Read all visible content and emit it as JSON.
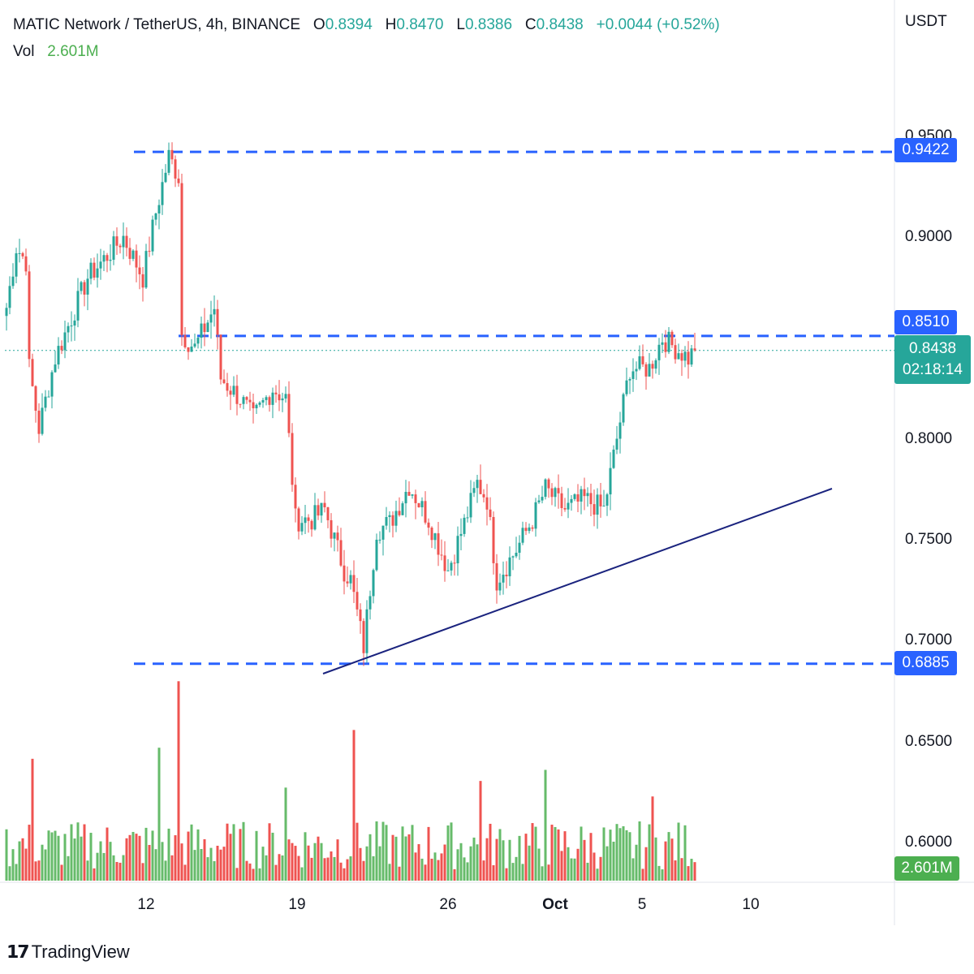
{
  "header": {
    "symbol": "MATIC Network / TetherUS, 4h, BINANCE",
    "open_label": "O",
    "open": "0.8394",
    "high_label": "H",
    "high": "0.8470",
    "low_label": "L",
    "low": "0.8386",
    "close_label": "C",
    "close": "0.8438",
    "change": "+0.0044 (+0.52%)",
    "vol_label": "Vol",
    "vol": "2.601M"
  },
  "axis": {
    "currency": "USDT",
    "price_ticks": [
      "0.9500",
      "0.9000",
      "0.8000",
      "0.7500",
      "0.7000",
      "0.6500",
      "0.6000"
    ],
    "time_ticks": [
      "12",
      "19",
      "26",
      "Oct",
      "5",
      "10"
    ]
  },
  "tags": {
    "resistance_high": "0.9422",
    "resistance_mid": "0.8510",
    "support_low": "0.6885",
    "last_price": "0.8438",
    "countdown": "02:18:14",
    "volume": "2.601M"
  },
  "colors": {
    "up": "#26a69a",
    "down": "#ef5350",
    "vol_up": "#66bb6a",
    "vol_down": "#ef5350",
    "level_line": "#2962ff",
    "trend_line": "#1a237e"
  },
  "branding": {
    "name": "TradingView"
  },
  "chart_data": {
    "type": "candlestick",
    "title": "MATIC Network / TetherUS, 4h, BINANCE",
    "y_range": [
      0.585,
      0.965
    ],
    "horizontal_levels": [
      0.9422,
      0.851,
      0.6885
    ],
    "trendline": {
      "from": [
        0.683
      ],
      "to": [
        0.775
      ],
      "note": "rising support"
    },
    "anchors": [
      {
        "i": 0,
        "p": 0.865
      },
      {
        "i": 3,
        "p": 0.895
      },
      {
        "i": 6,
        "p": 0.888
      },
      {
        "i": 7,
        "p": 0.835
      },
      {
        "i": 10,
        "p": 0.805
      },
      {
        "i": 15,
        "p": 0.84
      },
      {
        "i": 25,
        "p": 0.88
      },
      {
        "i": 30,
        "p": 0.889
      },
      {
        "i": 36,
        "p": 0.9
      },
      {
        "i": 42,
        "p": 0.88
      },
      {
        "i": 46,
        "p": 0.912
      },
      {
        "i": 50,
        "p": 0.94
      },
      {
        "i": 53,
        "p": 0.93
      },
      {
        "i": 54,
        "p": 0.852
      },
      {
        "i": 58,
        "p": 0.845
      },
      {
        "i": 64,
        "p": 0.865
      },
      {
        "i": 66,
        "p": 0.83
      },
      {
        "i": 72,
        "p": 0.82
      },
      {
        "i": 76,
        "p": 0.81
      },
      {
        "i": 82,
        "p": 0.825
      },
      {
        "i": 86,
        "p": 0.82
      },
      {
        "i": 89,
        "p": 0.76
      },
      {
        "i": 94,
        "p": 0.76
      },
      {
        "i": 98,
        "p": 0.765
      },
      {
        "i": 104,
        "p": 0.735
      },
      {
        "i": 106,
        "p": 0.73
      },
      {
        "i": 110,
        "p": 0.697
      },
      {
        "i": 114,
        "p": 0.755
      },
      {
        "i": 118,
        "p": 0.758
      },
      {
        "i": 124,
        "p": 0.777
      },
      {
        "i": 130,
        "p": 0.76
      },
      {
        "i": 136,
        "p": 0.735
      },
      {
        "i": 141,
        "p": 0.758
      },
      {
        "i": 145,
        "p": 0.778
      },
      {
        "i": 148,
        "p": 0.77
      },
      {
        "i": 151,
        "p": 0.73
      },
      {
        "i": 153,
        "p": 0.735
      },
      {
        "i": 157,
        "p": 0.745
      },
      {
        "i": 162,
        "p": 0.76
      },
      {
        "i": 166,
        "p": 0.775
      },
      {
        "i": 172,
        "p": 0.765
      },
      {
        "i": 178,
        "p": 0.77
      },
      {
        "i": 184,
        "p": 0.765
      },
      {
        "i": 188,
        "p": 0.8
      },
      {
        "i": 192,
        "p": 0.835
      },
      {
        "i": 198,
        "p": 0.835
      },
      {
        "i": 202,
        "p": 0.85
      },
      {
        "i": 206,
        "p": 0.845
      },
      {
        "i": 210,
        "p": 0.84
      },
      {
        "i": 212,
        "p": 0.8438
      }
    ],
    "volume_peaks": [
      {
        "i": 8,
        "v": 0.55
      },
      {
        "i": 47,
        "v": 0.6
      },
      {
        "i": 53,
        "v": 0.9
      },
      {
        "i": 86,
        "v": 0.42
      },
      {
        "i": 107,
        "v": 0.68
      },
      {
        "i": 146,
        "v": 0.45
      },
      {
        "i": 166,
        "v": 0.5
      },
      {
        "i": 199,
        "v": 0.38
      }
    ]
  }
}
